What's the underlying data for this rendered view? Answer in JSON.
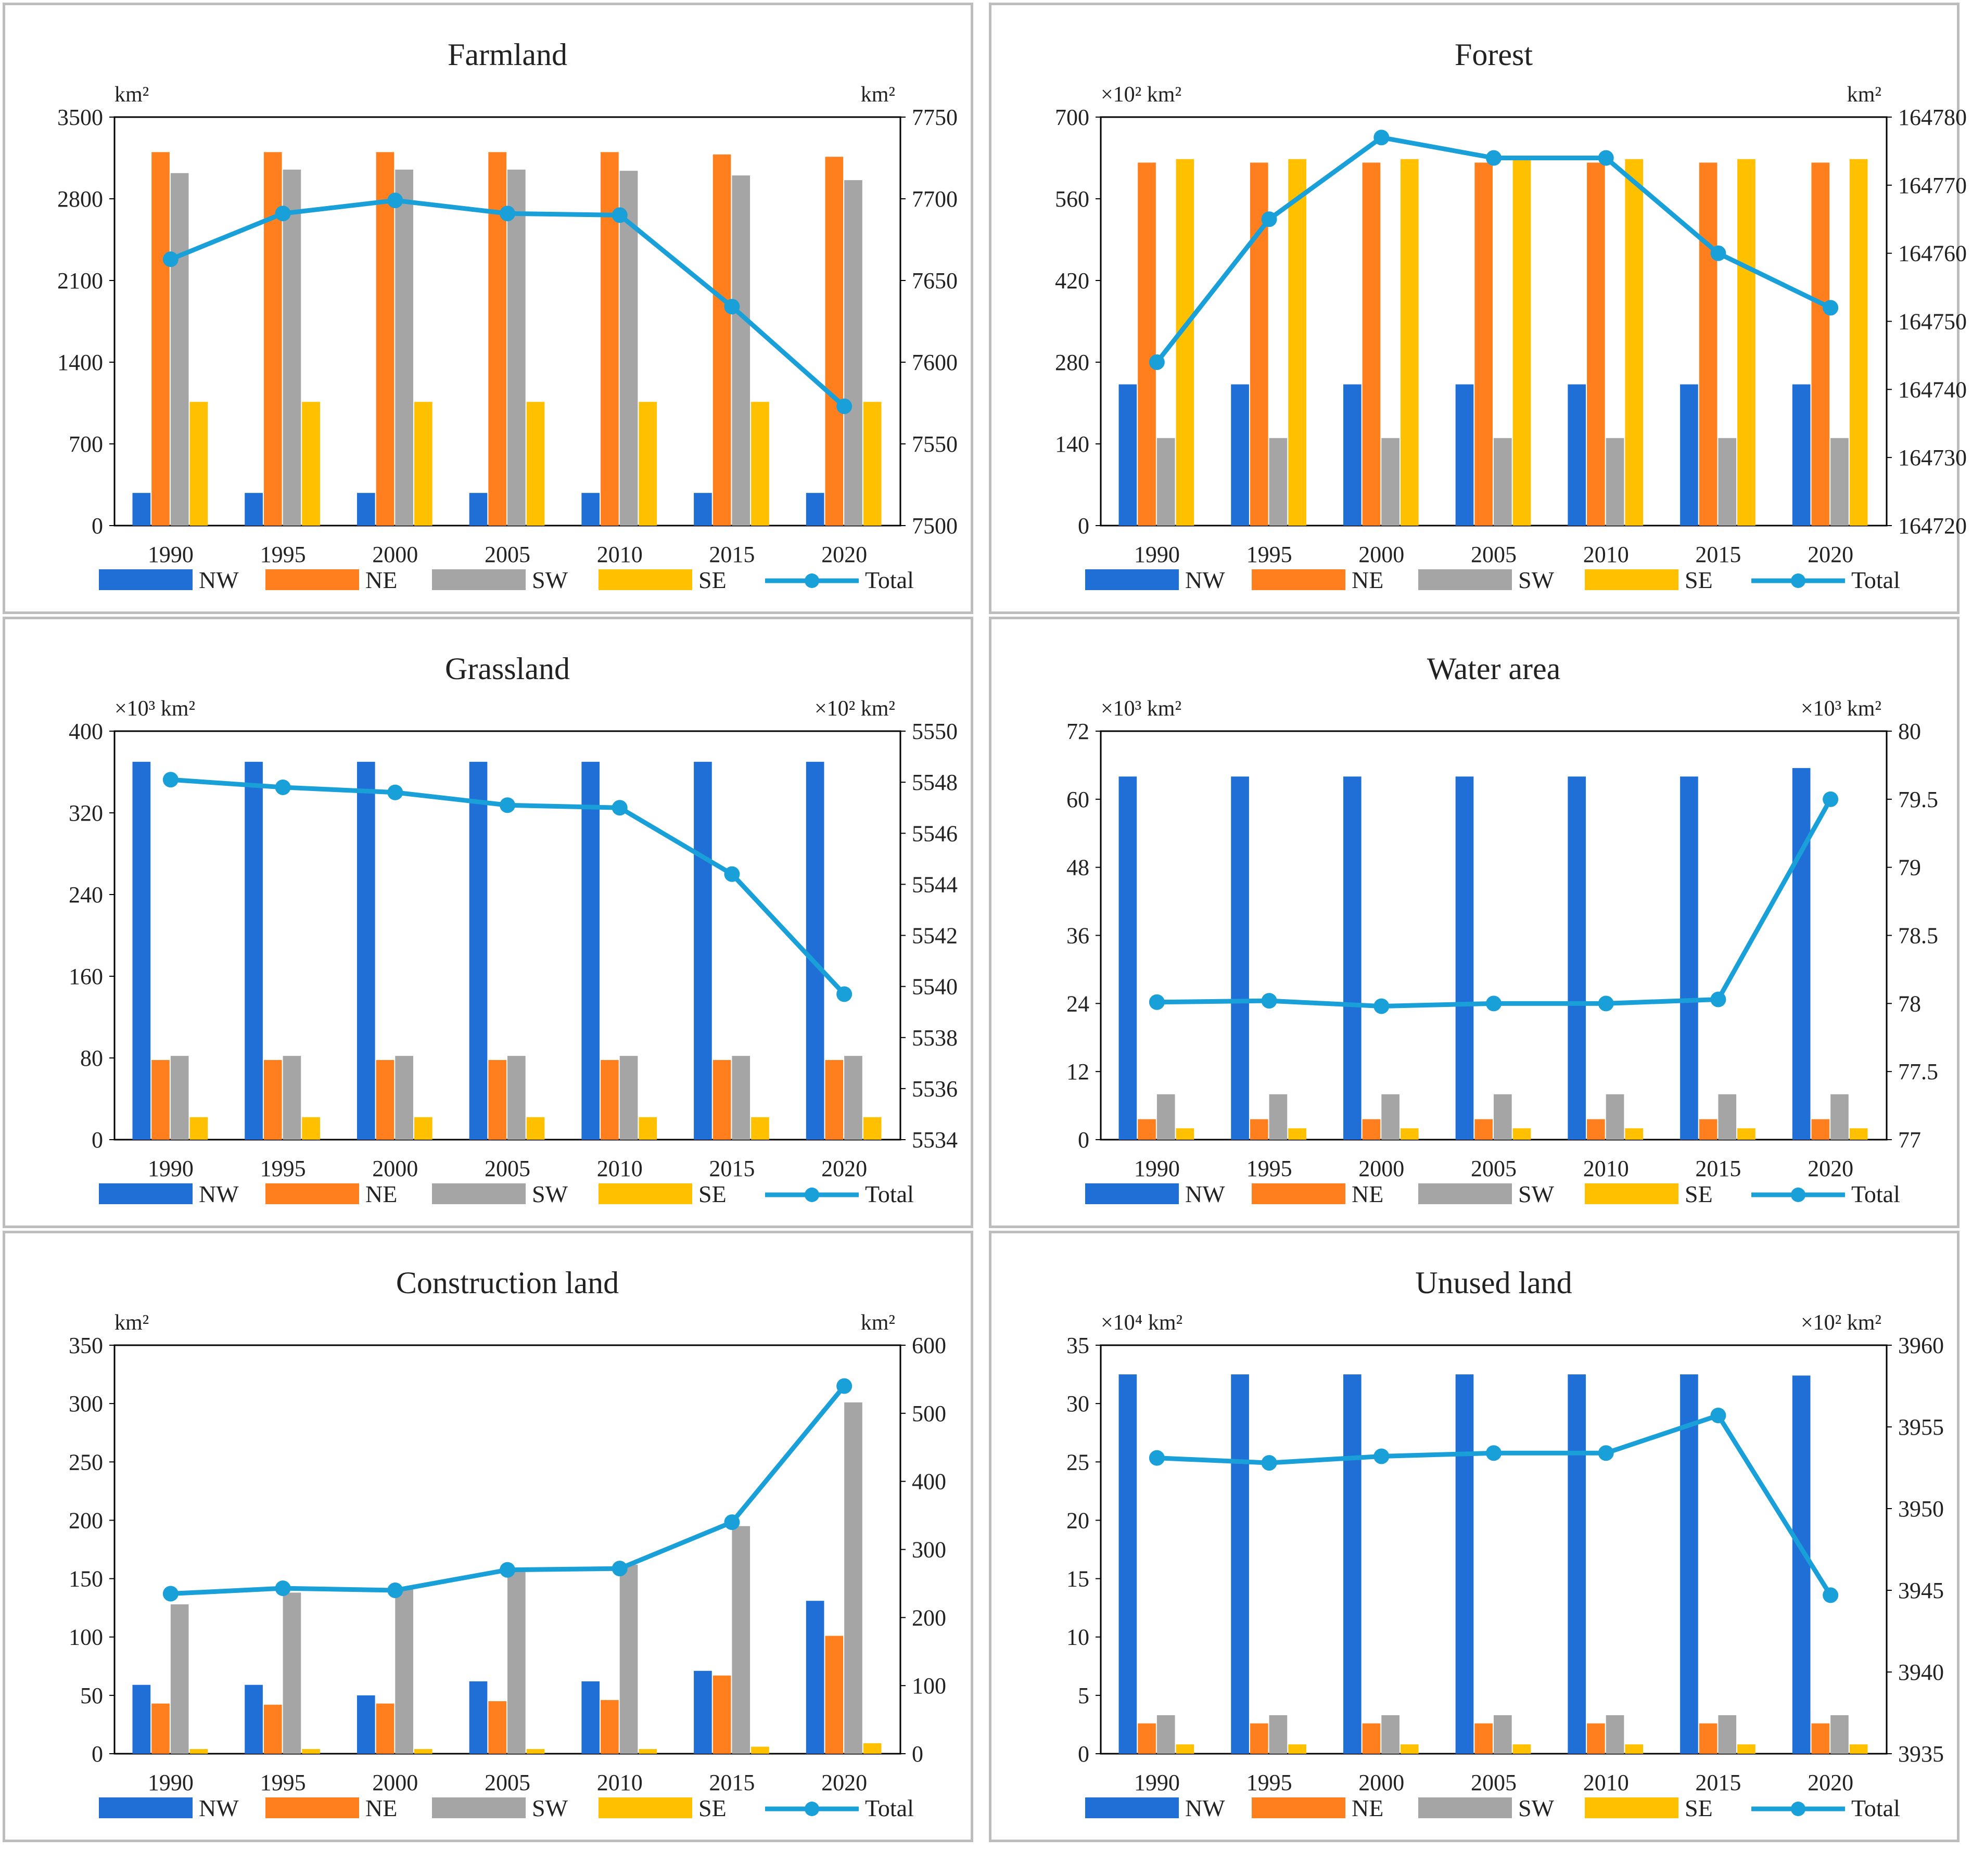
{
  "figure": {
    "legend": {
      "nw": "NW",
      "ne": "NE",
      "sw": "SW",
      "se": "SE",
      "total": "Total"
    },
    "colors": {
      "nw": "#1f6fd6",
      "ne": "#ff7f1e",
      "sw": "#a5a5a5",
      "se": "#ffc000",
      "total": "#1aa0d8"
    }
  },
  "chart_data": [
    {
      "type": "bar",
      "title": "Farmland",
      "left_unit": "km²",
      "right_unit": "km²",
      "categories": [
        "1990",
        "1995",
        "2000",
        "2005",
        "2010",
        "2015",
        "2020"
      ],
      "ylim_left": [
        0,
        3500
      ],
      "yticks_left": [
        "0",
        "700",
        "1400",
        "2100",
        "2800",
        "3500"
      ],
      "ylim_right": [
        7500,
        7750
      ],
      "yticks_right": [
        "7500",
        "7550",
        "7600",
        "7650",
        "7700",
        "7750"
      ],
      "series": [
        {
          "name": "NW",
          "values": [
            280,
            280,
            280,
            280,
            280,
            280,
            280
          ]
        },
        {
          "name": "NE",
          "values": [
            3200,
            3200,
            3200,
            3200,
            3200,
            3180,
            3160
          ]
        },
        {
          "name": "SW",
          "values": [
            3020,
            3050,
            3050,
            3050,
            3040,
            3000,
            2960
          ]
        },
        {
          "name": "SE",
          "values": [
            1060,
            1060,
            1060,
            1060,
            1060,
            1060,
            1060
          ]
        }
      ],
      "total": {
        "name": "Total",
        "values": [
          7663,
          7691,
          7699,
          7691,
          7690,
          7634,
          7573
        ]
      }
    },
    {
      "type": "bar",
      "title": "Forest",
      "left_unit": "×10² km²",
      "right_unit": "km²",
      "categories": [
        "1990",
        "1995",
        "2000",
        "2005",
        "2010",
        "2015",
        "2020"
      ],
      "ylim_left": [
        0,
        700
      ],
      "yticks_left": [
        "0",
        "140",
        "280",
        "420",
        "560",
        "700"
      ],
      "ylim_right": [
        164720,
        164780
      ],
      "yticks_right": [
        "164720",
        "164730",
        "164740",
        "164750",
        "164760",
        "164770",
        "164780"
      ],
      "series": [
        {
          "name": "NW",
          "values": [
            242,
            242,
            242,
            242,
            242,
            242,
            242
          ]
        },
        {
          "name": "NE",
          "values": [
            622,
            622,
            622,
            622,
            622,
            622,
            622
          ]
        },
        {
          "name": "SW",
          "values": [
            150,
            150,
            150,
            150,
            150,
            150,
            150
          ]
        },
        {
          "name": "SE",
          "values": [
            628,
            628,
            628,
            628,
            628,
            628,
            628
          ]
        }
      ],
      "total": {
        "name": "Total",
        "values": [
          164744,
          164765,
          164777,
          164774,
          164774,
          164760,
          164752
        ]
      }
    },
    {
      "type": "bar",
      "title": "Grassland",
      "left_unit": "×10³ km²",
      "right_unit": "×10² km²",
      "categories": [
        "1990",
        "1995",
        "2000",
        "2005",
        "2010",
        "2015",
        "2020"
      ],
      "ylim_left": [
        0,
        400
      ],
      "yticks_left": [
        "0",
        "80",
        "160",
        "240",
        "320",
        "400"
      ],
      "ylim_right": [
        5534,
        5550
      ],
      "yticks_right": [
        "5534",
        "5536",
        "5538",
        "5540",
        "5542",
        "5544",
        "5546",
        "5548",
        "5550"
      ],
      "series": [
        {
          "name": "NW",
          "values": [
            370,
            370,
            370,
            370,
            370,
            370,
            370
          ]
        },
        {
          "name": "NE",
          "values": [
            78,
            78,
            78,
            78,
            78,
            78,
            78
          ]
        },
        {
          "name": "SW",
          "values": [
            82,
            82,
            82,
            82,
            82,
            82,
            82
          ]
        },
        {
          "name": "SE",
          "values": [
            22,
            22,
            22,
            22,
            22,
            22,
            22
          ]
        }
      ],
      "total": {
        "name": "Total",
        "values": [
          5548.1,
          5547.8,
          5547.6,
          5547.1,
          5547.0,
          5544.4,
          5539.7
        ]
      }
    },
    {
      "type": "bar",
      "title": "Water area",
      "left_unit": "×10³ km²",
      "right_unit": "×10³ km²",
      "categories": [
        "1990",
        "1995",
        "2000",
        "2005",
        "2010",
        "2015",
        "2020"
      ],
      "ylim_left": [
        0,
        72
      ],
      "yticks_left": [
        "0",
        "12",
        "24",
        "36",
        "48",
        "60",
        "72"
      ],
      "ylim_right": [
        77,
        80
      ],
      "yticks_right": [
        "77",
        "77.5",
        "78",
        "78.5",
        "79",
        "79.5",
        "80"
      ],
      "series": [
        {
          "name": "NW",
          "values": [
            64,
            64,
            64,
            64,
            64,
            64,
            65.5
          ]
        },
        {
          "name": "NE",
          "values": [
            3.6,
            3.6,
            3.6,
            3.6,
            3.6,
            3.6,
            3.6
          ]
        },
        {
          "name": "SW",
          "values": [
            8,
            8,
            8,
            8,
            8,
            8,
            8
          ]
        },
        {
          "name": "SE",
          "values": [
            2,
            2,
            2,
            2,
            2,
            2,
            2
          ]
        }
      ],
      "total": {
        "name": "Total",
        "values": [
          78.01,
          78.02,
          77.98,
          78.0,
          78.0,
          78.03,
          79.5
        ]
      }
    },
    {
      "type": "bar",
      "title": "Construction land",
      "left_unit": "km²",
      "right_unit": "km²",
      "categories": [
        "1990",
        "1995",
        "2000",
        "2005",
        "2010",
        "2015",
        "2020"
      ],
      "ylim_left": [
        0,
        350
      ],
      "yticks_left": [
        "0",
        "50",
        "100",
        "150",
        "200",
        "250",
        "300",
        "350"
      ],
      "ylim_right": [
        0,
        600
      ],
      "yticks_right": [
        "0",
        "100",
        "200",
        "300",
        "400",
        "500",
        "600"
      ],
      "series": [
        {
          "name": "NW",
          "values": [
            59,
            59,
            50,
            62,
            62,
            71,
            131
          ]
        },
        {
          "name": "NE",
          "values": [
            43,
            42,
            43,
            45,
            46,
            67,
            101
          ]
        },
        {
          "name": "SW",
          "values": [
            128,
            138,
            143,
            158,
            162,
            195,
            301
          ]
        },
        {
          "name": "SE",
          "values": [
            4,
            4,
            4,
            4,
            4,
            6,
            9
          ]
        }
      ],
      "total": {
        "name": "Total",
        "values": [
          235,
          243,
          240,
          270,
          272,
          340,
          540
        ]
      }
    },
    {
      "type": "bar",
      "title": "Unused land",
      "left_unit": "×10⁴ km²",
      "right_unit": "×10² km²",
      "categories": [
        "1990",
        "1995",
        "2000",
        "2005",
        "2010",
        "2015",
        "2020"
      ],
      "ylim_left": [
        0,
        35
      ],
      "yticks_left": [
        "0",
        "5",
        "10",
        "15",
        "20",
        "25",
        "30",
        "35"
      ],
      "ylim_right": [
        3935,
        3960
      ],
      "yticks_right": [
        "3935",
        "3940",
        "3945",
        "3950",
        "3955",
        "3960"
      ],
      "series": [
        {
          "name": "NW",
          "values": [
            32.5,
            32.5,
            32.5,
            32.5,
            32.5,
            32.5,
            32.4
          ]
        },
        {
          "name": "NE",
          "values": [
            2.6,
            2.6,
            2.6,
            2.6,
            2.6,
            2.6,
            2.6
          ]
        },
        {
          "name": "SW",
          "values": [
            3.3,
            3.3,
            3.3,
            3.3,
            3.3,
            3.3,
            3.3
          ]
        },
        {
          "name": "SE",
          "values": [
            0.8,
            0.8,
            0.8,
            0.8,
            0.8,
            0.8,
            0.8
          ]
        }
      ],
      "total": {
        "name": "Total",
        "values": [
          3953.1,
          3952.8,
          3953.2,
          3953.4,
          3953.4,
          3955.7,
          3944.7
        ]
      }
    }
  ]
}
